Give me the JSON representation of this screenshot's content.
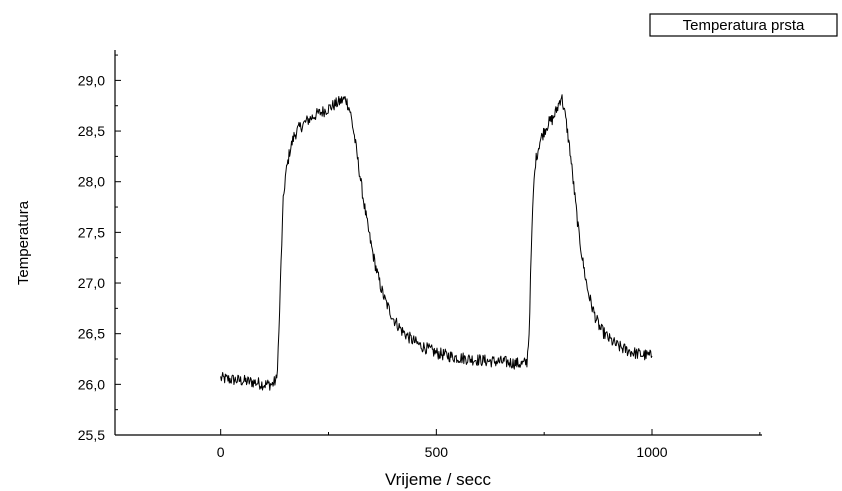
{
  "chart_data": {
    "type": "line",
    "title": "",
    "xlabel": "Vrijeme / secc",
    "ylabel": "Temperatura",
    "xlim": [
      -245,
      1255
    ],
    "ylim": [
      25.5,
      29.3
    ],
    "x_ticks": [
      0,
      500,
      1000
    ],
    "x_tick_labels": [
      "0",
      "500",
      "1000"
    ],
    "y_ticks": [
      25.5,
      26.0,
      26.5,
      27.0,
      27.5,
      28.0,
      28.5,
      29.0
    ],
    "y_tick_labels": [
      "25,5",
      "26,0",
      "26,5",
      "27,0",
      "27,5",
      "28,0",
      "28,5",
      "29,0"
    ],
    "grid": false,
    "legend_position": "top-right",
    "series": [
      {
        "name": "Temperatura prsta",
        "color": "#000000",
        "points": [
          [
            0,
            26.06
          ],
          [
            20,
            26.05
          ],
          [
            40,
            26.04
          ],
          [
            60,
            26.03
          ],
          [
            80,
            26.02
          ],
          [
            100,
            26.0
          ],
          [
            120,
            26.0
          ],
          [
            130,
            26.05
          ],
          [
            135,
            26.5
          ],
          [
            140,
            27.2
          ],
          [
            145,
            27.8
          ],
          [
            150,
            28.05
          ],
          [
            160,
            28.3
          ],
          [
            170,
            28.45
          ],
          [
            180,
            28.52
          ],
          [
            200,
            28.6
          ],
          [
            220,
            28.66
          ],
          [
            240,
            28.7
          ],
          [
            260,
            28.75
          ],
          [
            280,
            28.8
          ],
          [
            290,
            28.82
          ],
          [
            300,
            28.7
          ],
          [
            310,
            28.45
          ],
          [
            320,
            28.15
          ],
          [
            330,
            27.85
          ],
          [
            340,
            27.58
          ],
          [
            350,
            27.35
          ],
          [
            360,
            27.15
          ],
          [
            370,
            26.98
          ],
          [
            380,
            26.84
          ],
          [
            400,
            26.65
          ],
          [
            420,
            26.53
          ],
          [
            440,
            26.45
          ],
          [
            460,
            26.39
          ],
          [
            480,
            26.35
          ],
          [
            500,
            26.31
          ],
          [
            540,
            26.27
          ],
          [
            580,
            26.25
          ],
          [
            620,
            26.23
          ],
          [
            660,
            26.22
          ],
          [
            700,
            26.2
          ],
          [
            710,
            26.22
          ],
          [
            715,
            26.5
          ],
          [
            720,
            27.3
          ],
          [
            725,
            27.9
          ],
          [
            730,
            28.2
          ],
          [
            740,
            28.4
          ],
          [
            750,
            28.5
          ],
          [
            760,
            28.58
          ],
          [
            770,
            28.62
          ],
          [
            780,
            28.72
          ],
          [
            790,
            28.85
          ],
          [
            800,
            28.62
          ],
          [
            810,
            28.3
          ],
          [
            820,
            27.9
          ],
          [
            830,
            27.5
          ],
          [
            840,
            27.2
          ],
          [
            850,
            26.95
          ],
          [
            860,
            26.78
          ],
          [
            870,
            26.65
          ],
          [
            880,
            26.55
          ],
          [
            900,
            26.45
          ],
          [
            920,
            26.38
          ],
          [
            940,
            26.34
          ],
          [
            960,
            26.31
          ],
          [
            980,
            26.29
          ],
          [
            1000,
            26.28
          ]
        ]
      }
    ]
  }
}
